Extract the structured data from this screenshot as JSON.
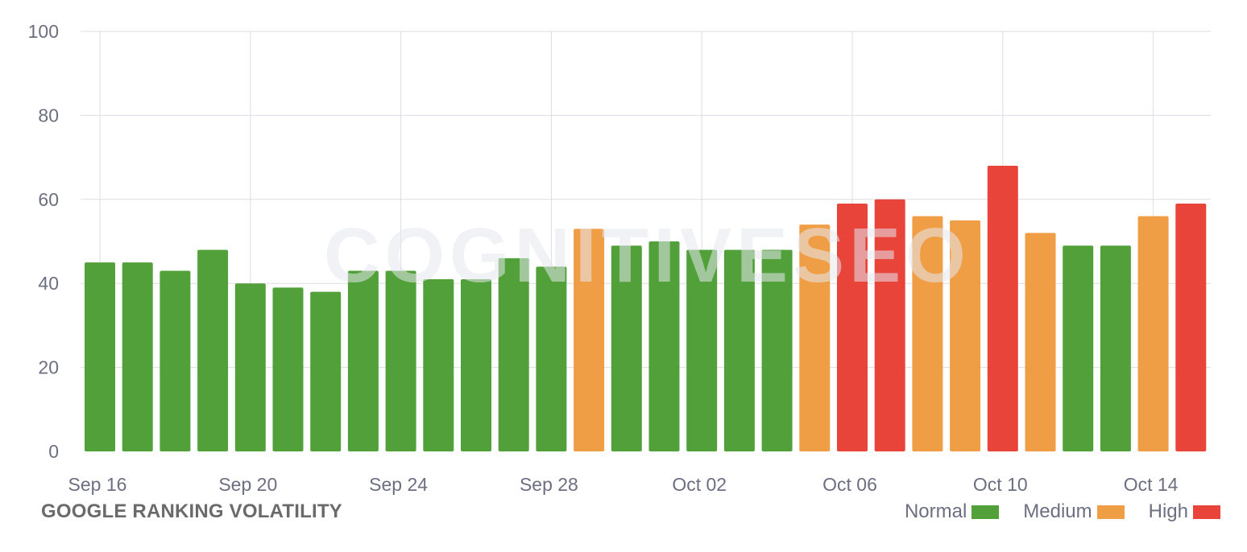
{
  "chart_data": {
    "type": "bar",
    "title": "GOOGLE RANKING VOLATILITY",
    "watermark": "COGNITIVESEO",
    "ylim": [
      0,
      100
    ],
    "y_ticks": [
      "0",
      "20",
      "40",
      "60",
      "80",
      "100"
    ],
    "x_tick_labels": [
      "Sep 16",
      "Sep 20",
      "Sep 24",
      "Sep 28",
      "Oct 02",
      "Oct 06",
      "Oct 10",
      "Oct 14"
    ],
    "x_tick_indices": [
      0,
      4,
      8,
      12,
      16,
      20,
      24,
      28
    ],
    "categories": [
      "Sep 16",
      "Sep 17",
      "Sep 18",
      "Sep 19",
      "Sep 20",
      "Sep 21",
      "Sep 22",
      "Sep 23",
      "Sep 24",
      "Sep 25",
      "Sep 26",
      "Sep 27",
      "Sep 28",
      "Sep 29",
      "Sep 30",
      "Oct 01",
      "Oct 02",
      "Oct 03",
      "Oct 04",
      "Oct 05",
      "Oct 06",
      "Oct 07",
      "Oct 08",
      "Oct 09",
      "Oct 10",
      "Oct 11",
      "Oct 12",
      "Oct 13",
      "Oct 14",
      "Oct 15"
    ],
    "values": [
      45,
      45,
      43,
      48,
      40,
      39,
      38,
      43,
      43,
      41,
      41,
      46,
      44,
      53,
      49,
      50,
      48,
      48,
      48,
      54,
      59,
      60,
      56,
      55,
      68,
      52,
      49,
      49,
      56,
      59
    ],
    "levels": [
      "Normal",
      "Normal",
      "Normal",
      "Normal",
      "Normal",
      "Normal",
      "Normal",
      "Normal",
      "Normal",
      "Normal",
      "Normal",
      "Normal",
      "Normal",
      "Medium",
      "Normal",
      "Normal",
      "Normal",
      "Normal",
      "Normal",
      "Medium",
      "High",
      "High",
      "Medium",
      "Medium",
      "High",
      "Medium",
      "Normal",
      "Normal",
      "Medium",
      "High"
    ],
    "legend": [
      {
        "label": "Normal",
        "color": "#52a03a"
      },
      {
        "label": "Medium",
        "color": "#ef9e45"
      },
      {
        "label": "High",
        "color": "#e9443a"
      }
    ],
    "legend_position": "bottom-right",
    "grid": true
  }
}
